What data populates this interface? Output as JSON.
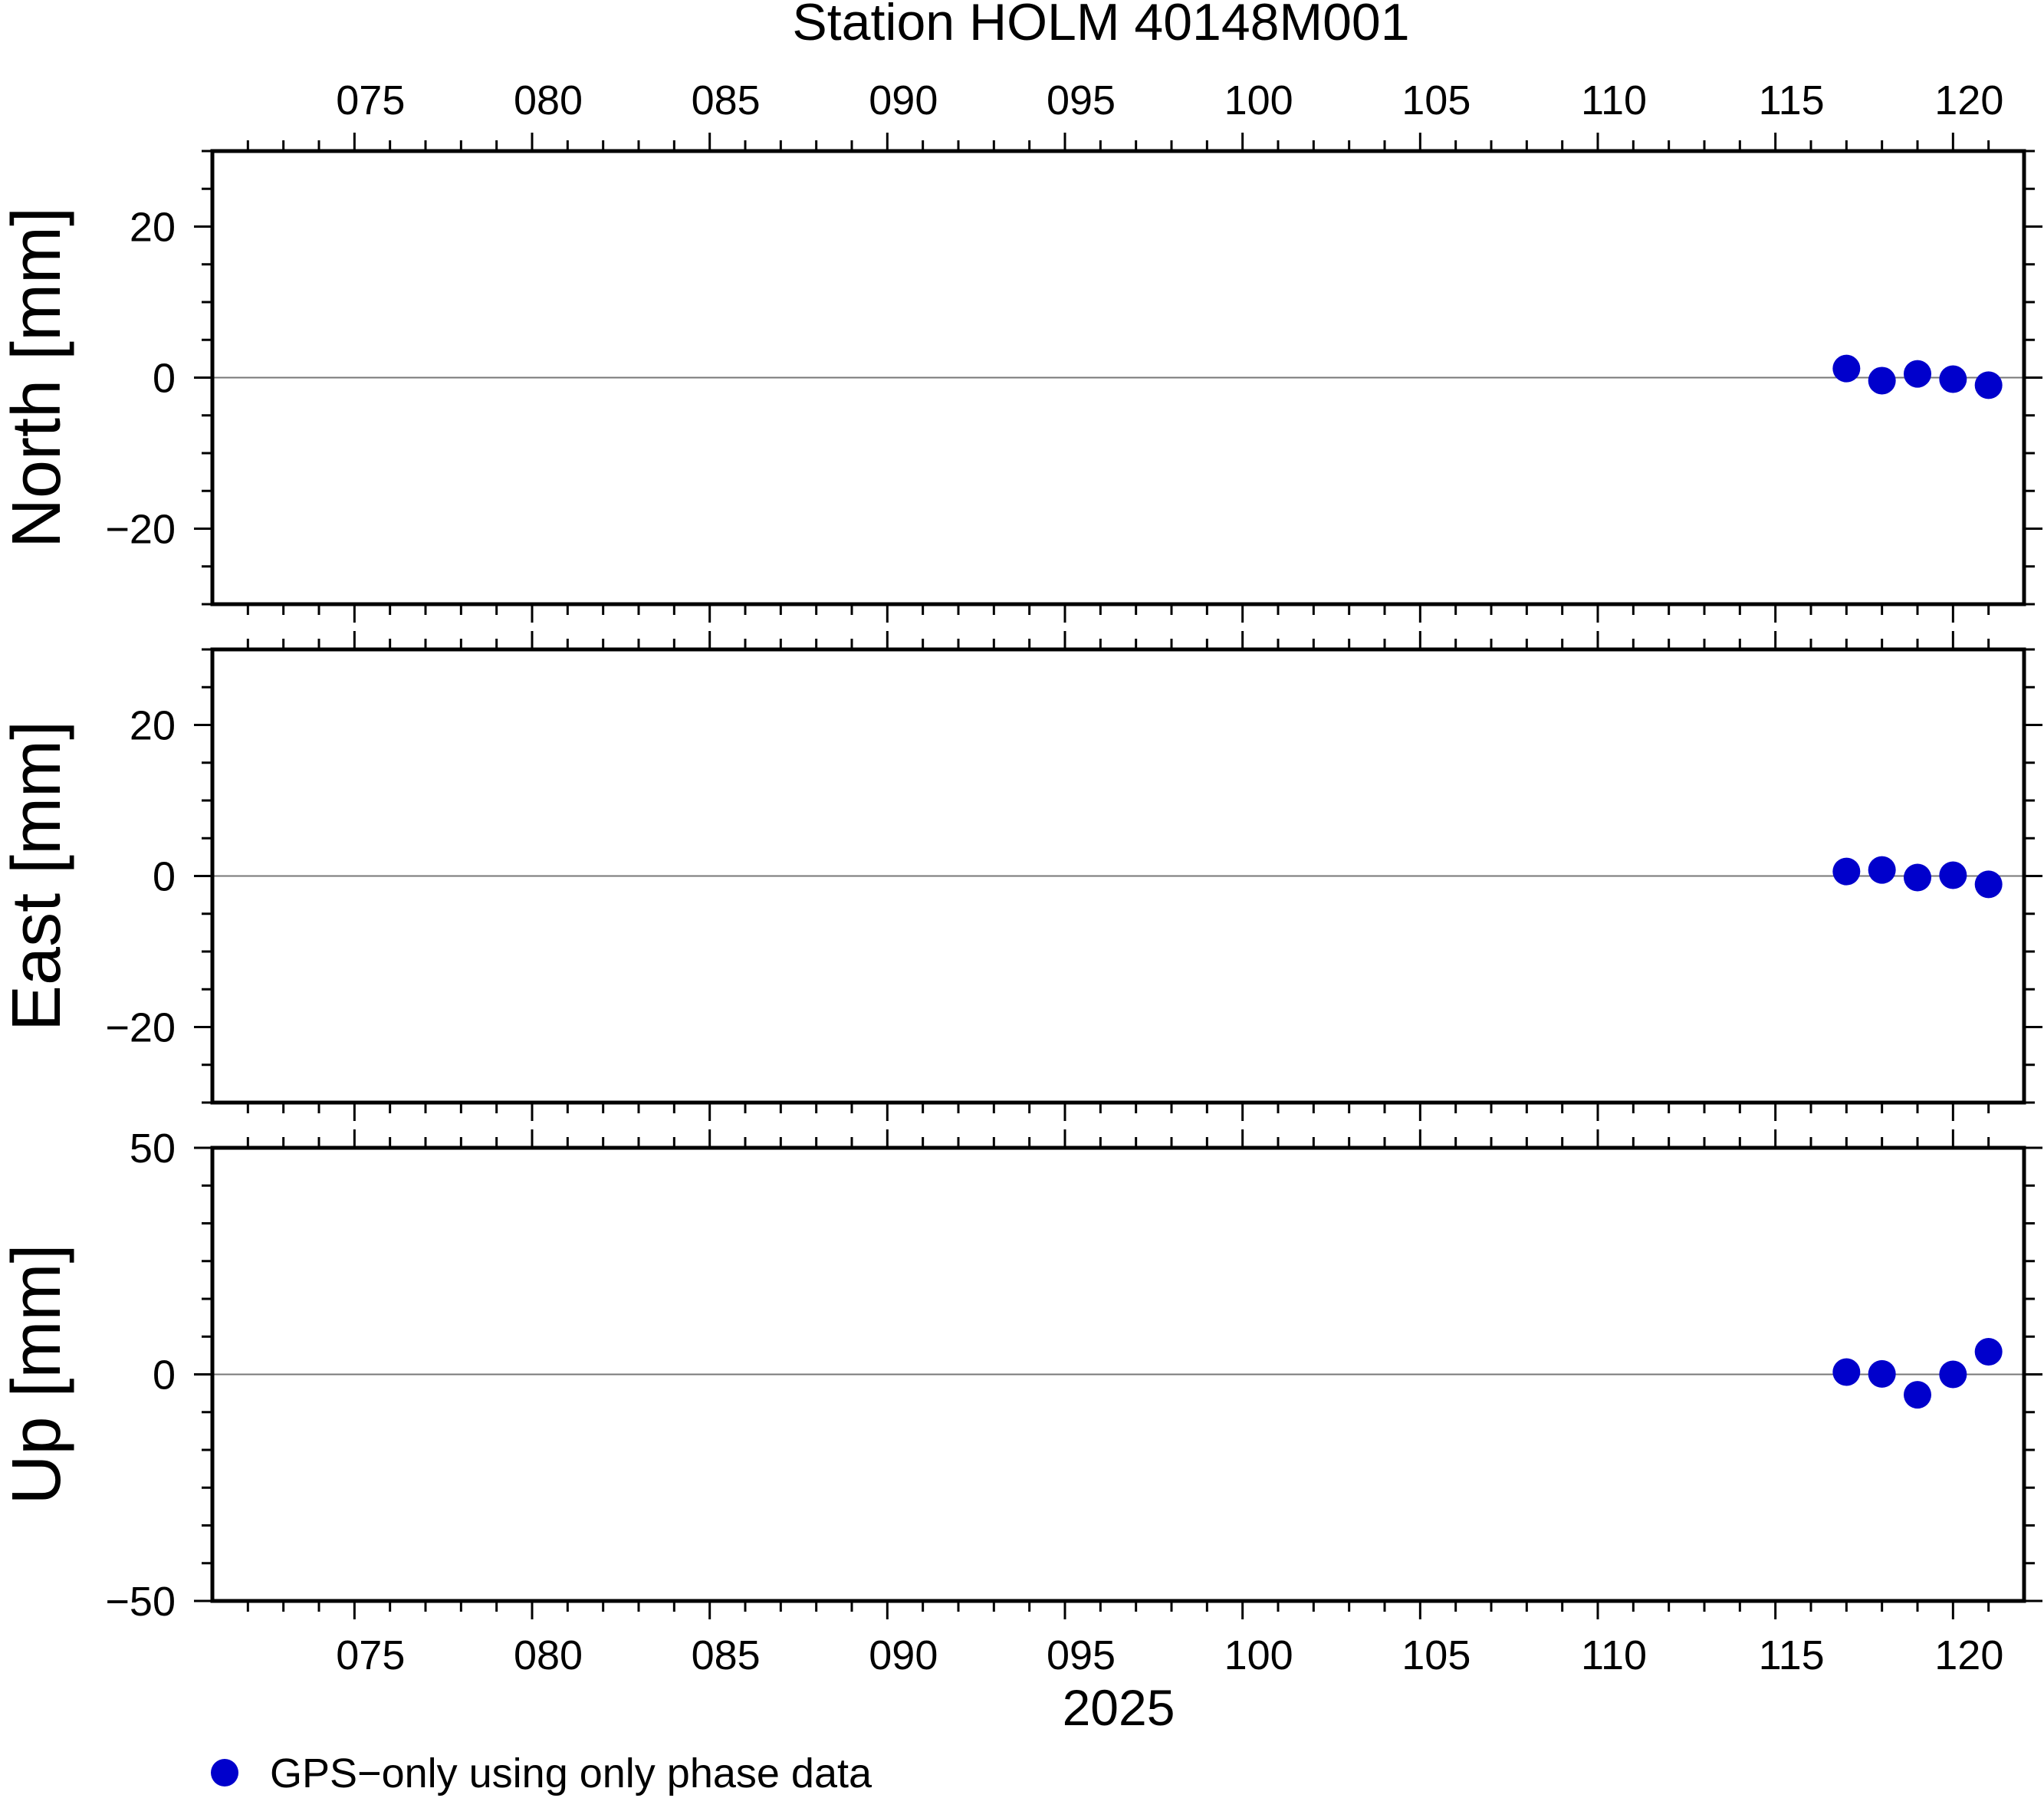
{
  "chart_data": {
    "type": "scatter",
    "title": "Station HOLM 40148M001",
    "xlabel": "2025",
    "x_ticks": [
      "075",
      "080",
      "085",
      "090",
      "095",
      "100",
      "105",
      "110",
      "115",
      "120"
    ],
    "xlim": [
      71,
      122
    ],
    "legend": {
      "label": "GPS−only using only phase data",
      "placement": "bottom-left",
      "color": "#0000cc"
    },
    "marker_color": "#0000cc",
    "panels": [
      {
        "ylabel": "North [mm]",
        "ylim": [
          -30,
          30
        ],
        "y_ticks": [
          20,
          0,
          -20
        ],
        "y_tick_labels": [
          "20",
          "0",
          "−20"
        ],
        "points": [
          {
            "x": 117,
            "y": 1.2
          },
          {
            "x": 118,
            "y": -0.4
          },
          {
            "x": 119,
            "y": 0.5
          },
          {
            "x": 120,
            "y": -0.2
          },
          {
            "x": 121,
            "y": -1.0
          }
        ]
      },
      {
        "ylabel": "East [mm]",
        "ylim": [
          -30,
          30
        ],
        "y_ticks": [
          20,
          0,
          -20
        ],
        "y_tick_labels": [
          "20",
          "0",
          "−20"
        ],
        "points": [
          {
            "x": 117,
            "y": 0.6
          },
          {
            "x": 118,
            "y": 0.8
          },
          {
            "x": 119,
            "y": -0.2
          },
          {
            "x": 120,
            "y": 0.1
          },
          {
            "x": 121,
            "y": -1.1
          }
        ]
      },
      {
        "ylabel": "Up [mm]",
        "ylim": [
          -50,
          50
        ],
        "y_ticks": [
          50,
          0,
          -50
        ],
        "y_tick_labels": [
          "50",
          "0",
          "−50"
        ],
        "points": [
          {
            "x": 117,
            "y": 0.5
          },
          {
            "x": 118,
            "y": 0.1
          },
          {
            "x": 119,
            "y": -4.5
          },
          {
            "x": 120,
            "y": 0.0
          },
          {
            "x": 121,
            "y": 5.0
          }
        ]
      }
    ]
  }
}
